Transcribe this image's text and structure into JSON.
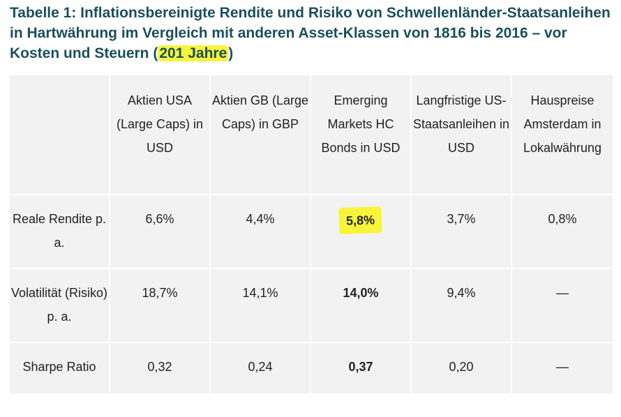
{
  "title": {
    "part1": "Tabelle 1: Inflationsbereinigte Rendite und Risiko von Schwellenländer-Staatsanleihen in Hartwährung im Vergleich mit anderen Asset-Klassen von 1816 bis 2016 – vor Kosten und Steuern (",
    "highlight": "201 Jahre",
    "part2": ")"
  },
  "table": {
    "columns": [
      "",
      "Aktien USA (Large Caps) in USD",
      "Aktien GB (Large Caps) in GBP",
      "Emerging Markets HC Bonds in USD",
      "Langfristige US-Staatsanleihen in USD",
      "Hauspreise Amsterdam in Lokalwährung"
    ],
    "rows": [
      {
        "label": "Reale Rendite p. a.",
        "values": [
          "6,6%",
          "4,4%",
          "5,8%",
          "3,7%",
          "0,8%"
        ]
      },
      {
        "label": "Volatilität (Risiko) p. a.",
        "values": [
          "18,7%",
          "14,1%",
          "14,0%",
          "9,4%",
          "—"
        ]
      },
      {
        "label": "Sharpe Ratio",
        "values": [
          "0,32",
          "0,24",
          "0,37",
          "0,20",
          "—"
        ]
      }
    ]
  },
  "colors": {
    "title": "#1b4f5c",
    "highlight": "#f7f53a",
    "table_bg": "#f2f2f2"
  }
}
